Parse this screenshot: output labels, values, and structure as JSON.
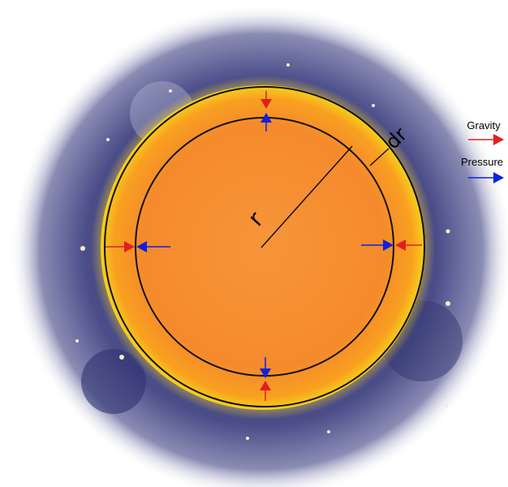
{
  "diagram": {
    "radius_label": "r",
    "shell_label": "dr"
  },
  "legend": {
    "items": [
      {
        "label": "Gravity"
      },
      {
        "label": "Pressure"
      }
    ]
  }
}
